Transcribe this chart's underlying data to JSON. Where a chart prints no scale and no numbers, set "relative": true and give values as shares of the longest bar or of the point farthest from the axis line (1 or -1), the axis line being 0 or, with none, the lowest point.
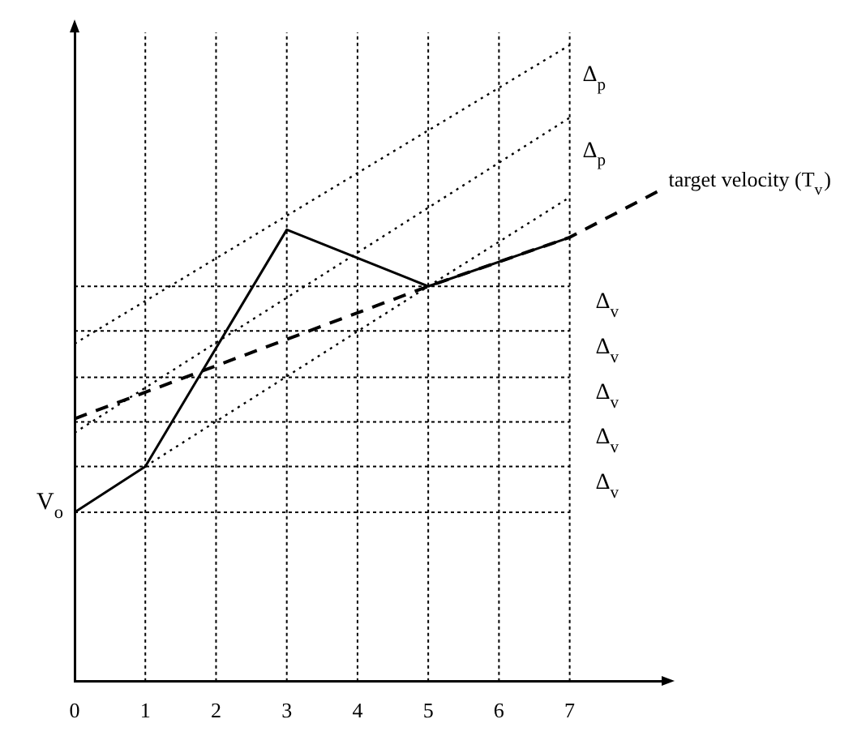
{
  "chart_data": {
    "type": "line",
    "relative": true,
    "xlim": [
      0,
      8.3
    ],
    "xticks": [
      0,
      1,
      2,
      3,
      4,
      5,
      6,
      7
    ],
    "grid": "x",
    "legend": false,
    "marker": "none",
    "series": [
      {
        "color": "#000000",
        "line_style": "solid",
        "x": [
          0,
          1,
          3,
          5,
          7
        ],
        "values": [
          0.266,
          0.338,
          0.71,
          0.621,
          0.698
        ]
      },
      {
        "name": "target velocity (T$_{v}$)",
        "color": "#000000",
        "line_style": "dashed",
        "x": [
          0,
          5,
          7,
          8.26
        ],
        "values": [
          0.413,
          0.621,
          0.698,
          0.771
        ]
      },
      {
        "color": "#000000",
        "line_style": "dotted",
        "x": [
          1,
          5,
          7
        ],
        "values": [
          0.338,
          0.621,
          0.761
        ]
      },
      {
        "color": "#000000",
        "line_style": "dotted",
        "x": [
          0,
          7
        ],
        "values": [
          0.391,
          0.886
        ]
      },
      {
        "color": "#000000",
        "line_style": "dotted",
        "x": [
          0,
          7
        ],
        "values": [
          0.531,
          1
        ]
      }
    ],
    "ref_lines": [
      {
        "axis": "y",
        "value": 0.266,
        "label": "V$_{o}$",
        "line_style": "dotted"
      },
      {
        "axis": "y",
        "value": 0.338,
        "line_style": "dotted"
      },
      {
        "axis": "y",
        "value": 0.408,
        "line_style": "dotted"
      },
      {
        "axis": "y",
        "value": 0.478,
        "line_style": "dotted"
      },
      {
        "axis": "y",
        "value": 0.551,
        "line_style": "dotted"
      },
      {
        "axis": "y",
        "value": 0.621,
        "line_style": "dotted"
      }
    ],
    "annotations": [
      "Δ$_{p}$",
      "Δ$_{p}$",
      "Δ$_{v}$",
      "Δ$_{v}$",
      "Δ$_{v}$",
      "Δ$_{v}$",
      "Δ$_{v}$"
    ]
  }
}
